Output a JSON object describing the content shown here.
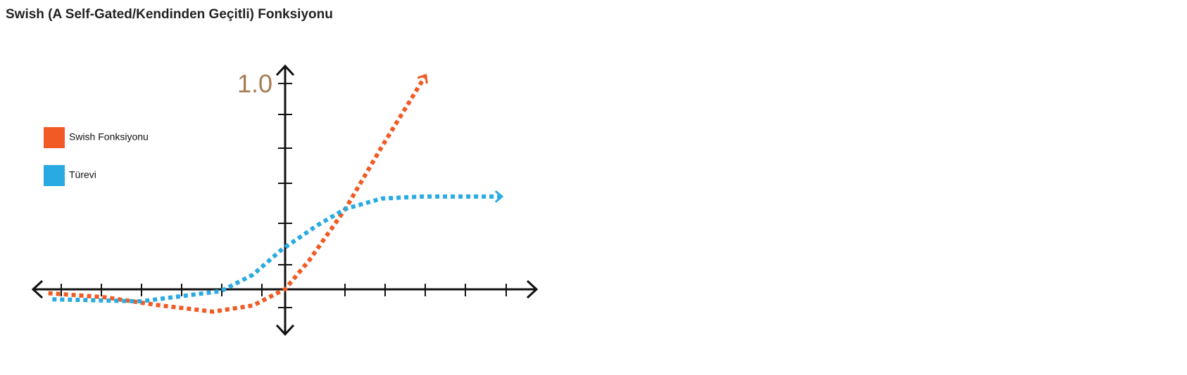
{
  "chart_data": {
    "type": "line",
    "title": "Swish (A Self-Gated/Kendinden Geçitli) Fonksiyonu",
    "xlim": [
      -6.28,
      6.26
    ],
    "ylim": [
      -0.22,
      1.085
    ],
    "yticks": [
      {
        "value": 1,
        "label": "1.0"
      }
    ],
    "legend": "upper left",
    "series": [
      {
        "name": "Swish Fonksiyonu",
        "color": "#f15a24",
        "x": [
          -5.9,
          -4.5,
          -3.1,
          -1.8,
          -0.8,
          0,
          0.6,
          1.5,
          2.4,
          3.5
        ],
        "values": [
          -0.02,
          -0.04,
          -0.08,
          -0.11,
          -0.08,
          0,
          0.14,
          0.39,
          0.69,
          1.04
        ]
      },
      {
        "name": "Türevi",
        "color": "#29abe2",
        "x": [
          -5.8,
          -3.6,
          -1.6,
          -0.8,
          -0.1,
          0.8,
          1.5,
          2.4,
          3.4,
          5.4
        ],
        "values": [
          -0.05,
          -0.06,
          -0.01,
          0.07,
          0.19,
          0.31,
          0.39,
          0.44,
          0.45,
          0.45
        ]
      }
    ]
  }
}
